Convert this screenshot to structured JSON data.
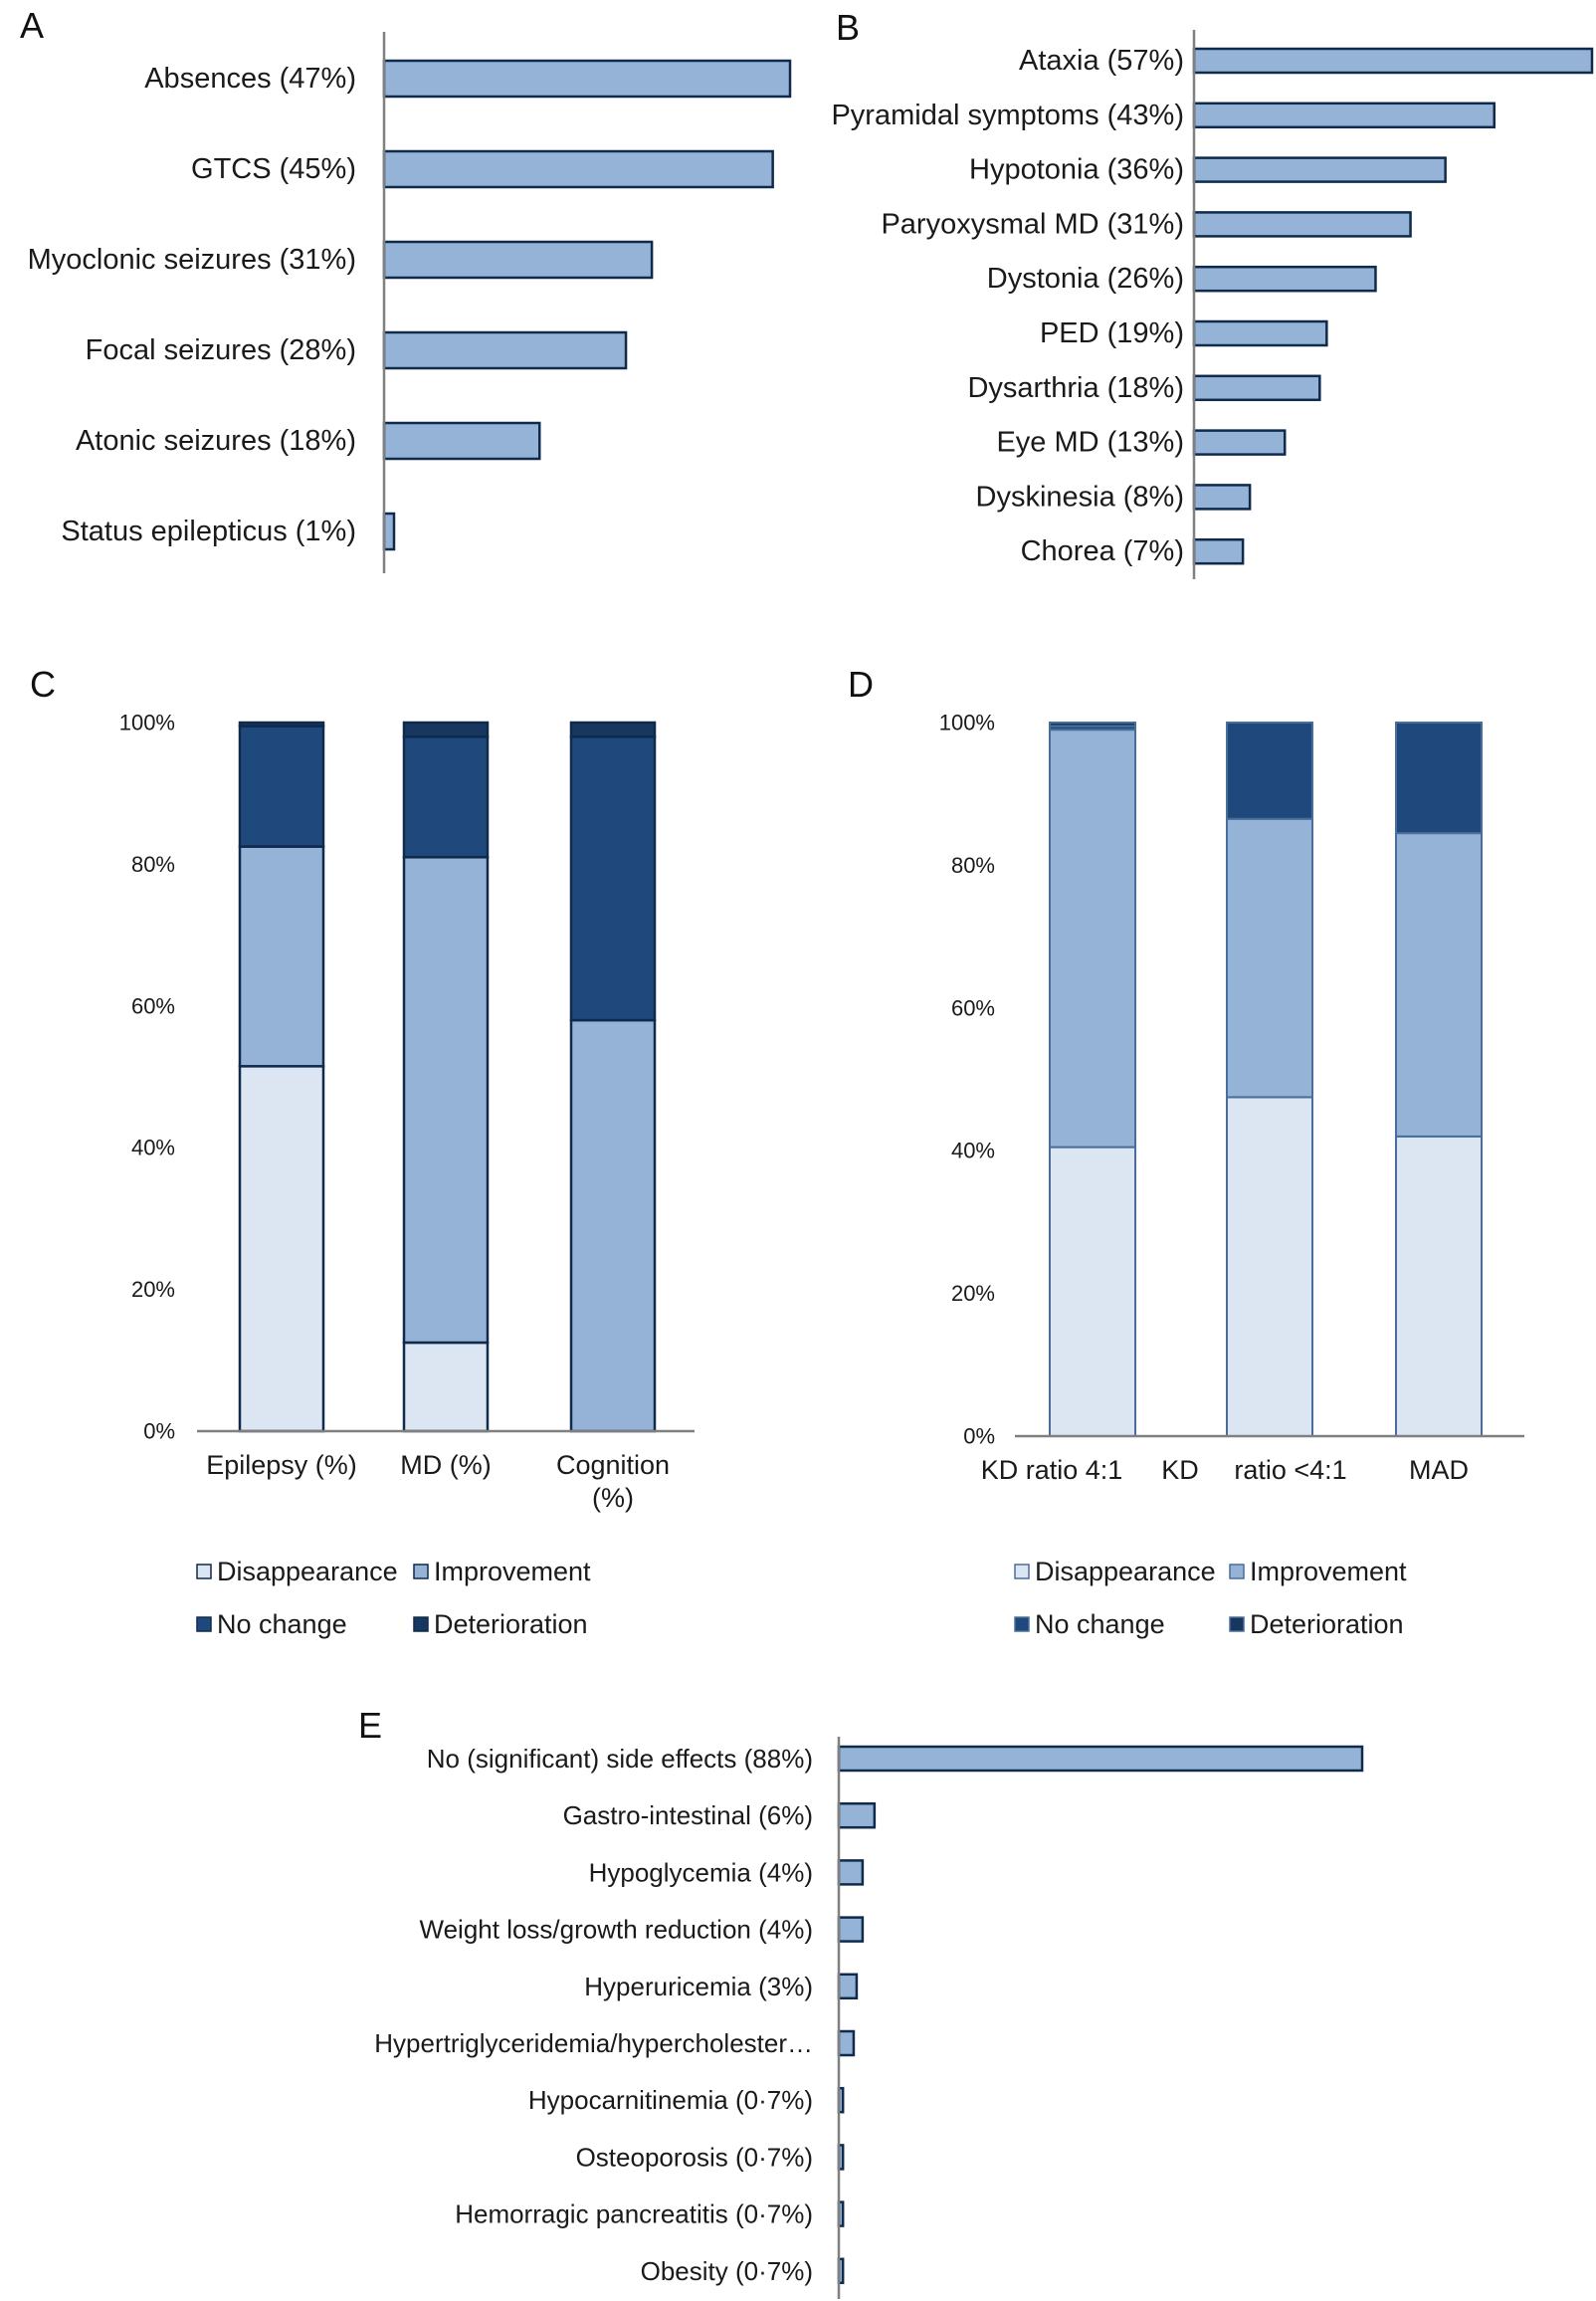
{
  "colors": {
    "disappearance": "#dce6f2",
    "improvement": "#95b3d7",
    "no_change": "#1f497d",
    "deterioration": "#17375e",
    "bar_fill": "#95b3d7",
    "bar_stroke": "#0f2a4a",
    "axis": "#808080"
  },
  "chart_data": [
    {
      "panel": "A",
      "type": "bar",
      "orientation": "horizontal",
      "categories": [
        "Absences (47%)",
        "GTCS (45%)",
        "Myoclonic seizures (31%)",
        "Focal seizures (28%)",
        "Atonic seizures (18%)",
        "Status epilepticus (1%)"
      ],
      "values": [
        47,
        45,
        31,
        28,
        18,
        1
      ],
      "xlim": [
        0,
        47
      ]
    },
    {
      "panel": "B",
      "type": "bar",
      "orientation": "horizontal",
      "categories": [
        "Ataxia (57%)",
        "Pyramidal symptoms (43%)",
        "Hypotonia (36%)",
        "Paryoxysmal MD (31%)",
        "Dystonia (26%)",
        "PED (19%)",
        "Dysarthria (18%)",
        "Eye MD (13%)",
        "Dyskinesia (8%)",
        "Chorea (7%)"
      ],
      "values": [
        57,
        43,
        36,
        31,
        26,
        19,
        18,
        13,
        8,
        7
      ],
      "xlim": [
        0,
        57
      ]
    },
    {
      "panel": "C",
      "type": "bar",
      "stacked": true,
      "categories": [
        "Epilepsy (%)",
        "MD (%)",
        "Cognition (%)"
      ],
      "category_lines": [
        [
          "Epilepsy (%)"
        ],
        [
          "MD (%)"
        ],
        [
          "Cognition",
          "(%)"
        ]
      ],
      "series": [
        {
          "name": "Disappearance",
          "values": [
            51.5,
            12.5,
            0
          ]
        },
        {
          "name": "Improvement",
          "values": [
            31,
            68.5,
            58
          ]
        },
        {
          "name": "No change",
          "values": [
            17,
            17,
            40
          ]
        },
        {
          "name": "Deterioration",
          "values": [
            0.5,
            2,
            2
          ]
        }
      ],
      "ylim": [
        0,
        100
      ],
      "yticks": [
        "0%",
        "20%",
        "40%",
        "60%",
        "80%",
        "100%"
      ],
      "legend": "bottom"
    },
    {
      "panel": "D",
      "type": "bar",
      "stacked": true,
      "categories": [
        "KD ratio 4:1",
        "KD ratio <4:1",
        "MAD"
      ],
      "x_tick_text": [
        "KD ratio 4:1",
        "KD",
        "ratio <4:1",
        "MAD"
      ],
      "series": [
        {
          "name": "Disappearance",
          "values": [
            40.5,
            47.5,
            42
          ]
        },
        {
          "name": "Improvement",
          "values": [
            58.5,
            39,
            42.5
          ]
        },
        {
          "name": "No change",
          "values": [
            0.5,
            13.5,
            15.5
          ]
        },
        {
          "name": "Deterioration",
          "values": [
            0.5,
            0,
            0
          ]
        }
      ],
      "ylim": [
        0,
        100
      ],
      "yticks": [
        "0%",
        "20%",
        "40%",
        "60%",
        "80%",
        "100%"
      ],
      "legend": "bottom"
    },
    {
      "panel": "E",
      "type": "bar",
      "orientation": "horizontal",
      "categories": [
        "No (significant) side effects (88%)",
        "Gastro-intestinal (6%)",
        "Hypoglycemia (4%)",
        "Weight loss/growth reduction (4%)",
        "Hyperuricemia (3%)",
        "Hypertriglyceridemia/hypercholester…",
        "Hypocarnitinemia (0·7%)",
        "Osteoporosis (0·7%)",
        "Hemorragic pancreatitis (0·7%)",
        "Obesity (0·7%)"
      ],
      "values": [
        88,
        6,
        4,
        4,
        3,
        2.5,
        0.7,
        0.7,
        0.7,
        0.7
      ],
      "xlim": [
        0,
        88
      ]
    }
  ]
}
